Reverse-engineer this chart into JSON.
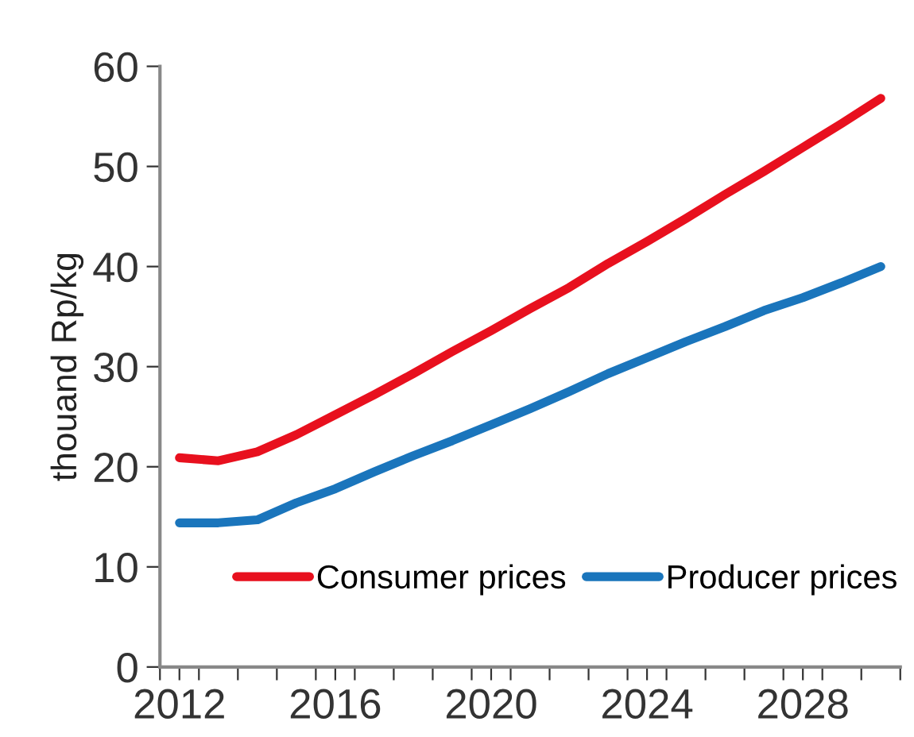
{
  "chart_data": {
    "type": "line",
    "ylabel": "thouand Rp/kg",
    "x": [
      2012,
      2013,
      2014,
      2015,
      2016,
      2017,
      2018,
      2019,
      2020,
      2021,
      2022,
      2023,
      2024,
      2025,
      2026,
      2027,
      2028,
      2029,
      2030
    ],
    "series": [
      {
        "name": "Consumer prices",
        "color": "#e8101e",
        "values": [
          20.9,
          20.6,
          21.5,
          23.2,
          25.2,
          27.2,
          29.3,
          31.5,
          33.6,
          35.8,
          37.9,
          40.3,
          42.5,
          44.8,
          47.2,
          49.5,
          51.9,
          54.3,
          56.8
        ]
      },
      {
        "name": "Producer prices",
        "color": "#1a75bc",
        "values": [
          14.4,
          14.4,
          14.7,
          16.4,
          17.8,
          19.5,
          21.1,
          22.6,
          24.2,
          25.8,
          27.5,
          29.3,
          30.9,
          32.5,
          34.0,
          35.6,
          36.9,
          38.4,
          40.0
        ]
      }
    ],
    "xlim": [
      2011.5,
      2030.5
    ],
    "xticks": [
      {
        "value": 2011.5,
        "label": null
      },
      2012,
      {
        "value": 2012.5,
        "label": null
      },
      {
        "value": 2013.5,
        "label": null
      },
      {
        "value": 2014.5,
        "label": null
      },
      {
        "value": 2015.5,
        "label": null
      },
      2016,
      {
        "value": 2016.5,
        "label": null
      },
      {
        "value": 2017.5,
        "label": null
      },
      {
        "value": 2018.5,
        "label": null
      },
      {
        "value": 2019.5,
        "label": null
      },
      2020,
      {
        "value": 2020.5,
        "label": null
      },
      {
        "value": 2021.5,
        "label": null
      },
      {
        "value": 2022.5,
        "label": null
      },
      {
        "value": 2023.5,
        "label": null
      },
      2024,
      {
        "value": 2024.5,
        "label": null
      },
      {
        "value": 2025.5,
        "label": null
      },
      {
        "value": 2026.5,
        "label": null
      },
      {
        "value": 2027.5,
        "label": null
      },
      2028,
      {
        "value": 2028.5,
        "label": null
      },
      {
        "value": 2029.5,
        "label": null
      },
      {
        "value": 2030.5,
        "label": null
      }
    ],
    "ylim": [
      0,
      60
    ],
    "yticks": [
      0,
      10,
      20,
      30,
      40,
      50,
      60
    ],
    "grid": false,
    "legend": "bottom",
    "marker": "none",
    "line_style": "solid"
  }
}
